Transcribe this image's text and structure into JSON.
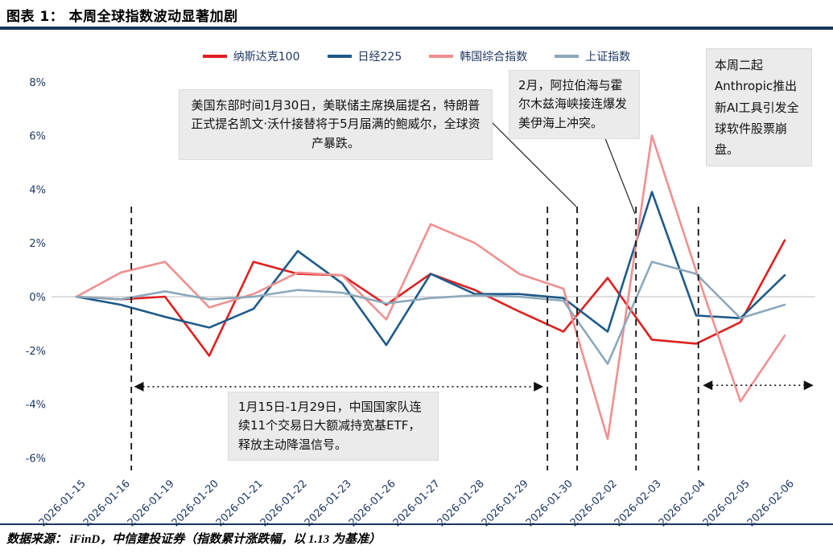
{
  "header": {
    "title": "图表 1：  本周全球指数波动显著加剧"
  },
  "footer": {
    "source": "数据来源：  iFinD，中信建投证券（指数累计涨跌幅，以 1.13 为基准）"
  },
  "colors": {
    "accent_navy": "#16365c",
    "axis_label": "#1f3864",
    "note_bg": "#ebebeb",
    "nasdaq_red": "#e02020",
    "nikkei_blue": "#1e5a8a",
    "kospi_pink": "#f19090",
    "sse_gray_blue": "#8ca8bc"
  },
  "annotations": {
    "fed": "美国东部时间1月30日，美联储主席换届提名，特朗普正式提名凯文·沃什接替将于5月届满的鲍威尔，全球资产暴跌。",
    "conflict": "2月，阿拉伯海与霍尔木兹海峡接连爆发美伊海上冲突。",
    "anthropic": "本周二起Anthropic推出新AI工具引发全球软件股票崩盘。",
    "etf": "1月15日-1月29日，中国国家队连续11个交易日大额减持宽基ETF，释放主动降温信号。"
  },
  "chart_data": {
    "type": "line",
    "title": "本周全球指数波动显著加剧",
    "xlabel": "",
    "ylabel": "",
    "unit": "%",
    "ylim": [
      -6,
      8
    ],
    "grid": "zero-line-only",
    "legend_position": "top",
    "x": [
      "2026-01-15",
      "2026-01-16",
      "2026-01-19",
      "2026-01-20",
      "2026-01-21",
      "2026-01-22",
      "2026-01-23",
      "2026-01-26",
      "2026-01-27",
      "2026-01-28",
      "2026-01-29",
      "2026-01-30",
      "2026-02-02",
      "2026-02-03",
      "2026-02-04",
      "2026-02-05",
      "2026-02-06"
    ],
    "yticks": [
      {
        "value": 8,
        "label": "8%"
      },
      {
        "value": 6,
        "label": "6%"
      },
      {
        "value": 4,
        "label": "4%"
      },
      {
        "value": 2,
        "label": "2%"
      },
      {
        "value": 0,
        "label": "0%"
      },
      {
        "value": -2,
        "label": "-2%"
      },
      {
        "value": -4,
        "label": "-4%"
      },
      {
        "value": -6,
        "label": "-6%"
      }
    ],
    "series": [
      {
        "name": "纳斯达克100",
        "color": "#e02020",
        "values": [
          0,
          -0.1,
          0,
          -2.2,
          1.3,
          0.85,
          0.8,
          -0.3,
          0.85,
          0.25,
          -0.55,
          -1.3,
          0.7,
          -1.6,
          -1.75,
          -0.95,
          2.1
        ]
      },
      {
        "name": "日经225",
        "color": "#1e5a8a",
        "values": [
          0,
          -0.3,
          -0.75,
          -1.15,
          -0.45,
          1.7,
          0.5,
          -1.8,
          0.85,
          0.1,
          0.1,
          -0.05,
          -1.3,
          3.9,
          -0.7,
          -0.8,
          0.8
        ]
      },
      {
        "name": "韩国综合指数",
        "color": "#f19090",
        "values": [
          0,
          0.9,
          1.3,
          -0.4,
          0.1,
          0.9,
          0.8,
          -0.85,
          2.7,
          2.0,
          0.85,
          0.3,
          -5.3,
          6.0,
          0.95,
          -3.9,
          -1.45
        ]
      },
      {
        "name": "上证指数",
        "color": "#8ca8bc",
        "values": [
          0,
          -0.1,
          0.2,
          -0.1,
          0,
          0.25,
          0.15,
          -0.25,
          -0.05,
          0.05,
          0,
          -0.15,
          -2.5,
          1.3,
          0.85,
          -0.8,
          -0.3
        ]
      }
    ],
    "vlines_index": [
      1.24,
      10.64,
      11.31,
      12.64,
      14.05
    ],
    "range_arrows": [
      {
        "from_index": 1.3,
        "to_index": 10.55,
        "y_value": -3.35
      },
      {
        "from_index": 14.15,
        "to_index": 16.65,
        "y_value": -3.3
      }
    ]
  }
}
